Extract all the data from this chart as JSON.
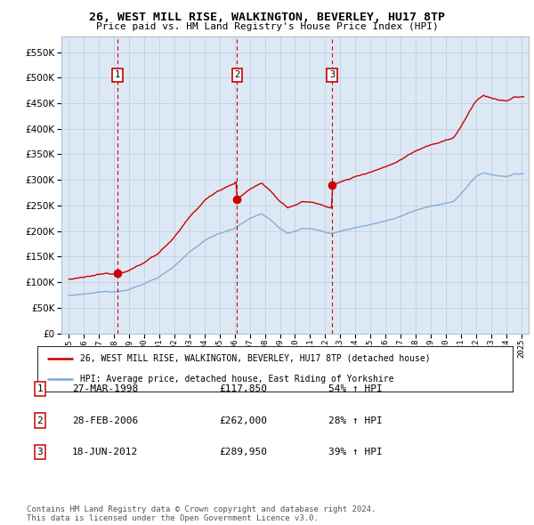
{
  "title": "26, WEST MILL RISE, WALKINGTON, BEVERLEY, HU17 8TP",
  "subtitle": "Price paid vs. HM Land Registry's House Price Index (HPI)",
  "legend_line1": "26, WEST MILL RISE, WALKINGTON, BEVERLEY, HU17 8TP (detached house)",
  "legend_line2": "HPI: Average price, detached house, East Riding of Yorkshire",
  "sale_points": [
    {
      "label": "1",
      "date": "27-MAR-1998",
      "price": 117850,
      "x": 1998.23
    },
    {
      "label": "2",
      "date": "28-FEB-2006",
      "price": 262000,
      "x": 2006.16
    },
    {
      "label": "3",
      "date": "18-JUN-2012",
      "price": 289950,
      "x": 2012.46
    }
  ],
  "table_rows": [
    [
      "1",
      "27-MAR-1998",
      "£117,850",
      "54% ↑ HPI"
    ],
    [
      "2",
      "28-FEB-2006",
      "£262,000",
      "28% ↑ HPI"
    ],
    [
      "3",
      "18-JUN-2012",
      "£289,950",
      "39% ↑ HPI"
    ]
  ],
  "footer": "Contains HM Land Registry data © Crown copyright and database right 2024.\nThis data is licensed under the Open Government Licence v3.0.",
  "red_color": "#cc0000",
  "blue_color": "#7ba7d4",
  "chart_bg": "#dce9f5",
  "dashed_red": "#cc0000",
  "ylim": [
    0,
    580000
  ],
  "yticks": [
    0,
    50000,
    100000,
    150000,
    200000,
    250000,
    300000,
    350000,
    400000,
    450000,
    500000,
    550000
  ],
  "xlim": [
    1994.5,
    2025.5
  ],
  "xticks": [
    1995,
    1996,
    1997,
    1998,
    1999,
    2000,
    2001,
    2002,
    2003,
    2004,
    2005,
    2006,
    2007,
    2008,
    2009,
    2010,
    2011,
    2012,
    2013,
    2014,
    2015,
    2016,
    2017,
    2018,
    2019,
    2020,
    2021,
    2022,
    2023,
    2024,
    2025
  ],
  "background_color": "#ffffff",
  "grid_color": "#c0d0e0"
}
